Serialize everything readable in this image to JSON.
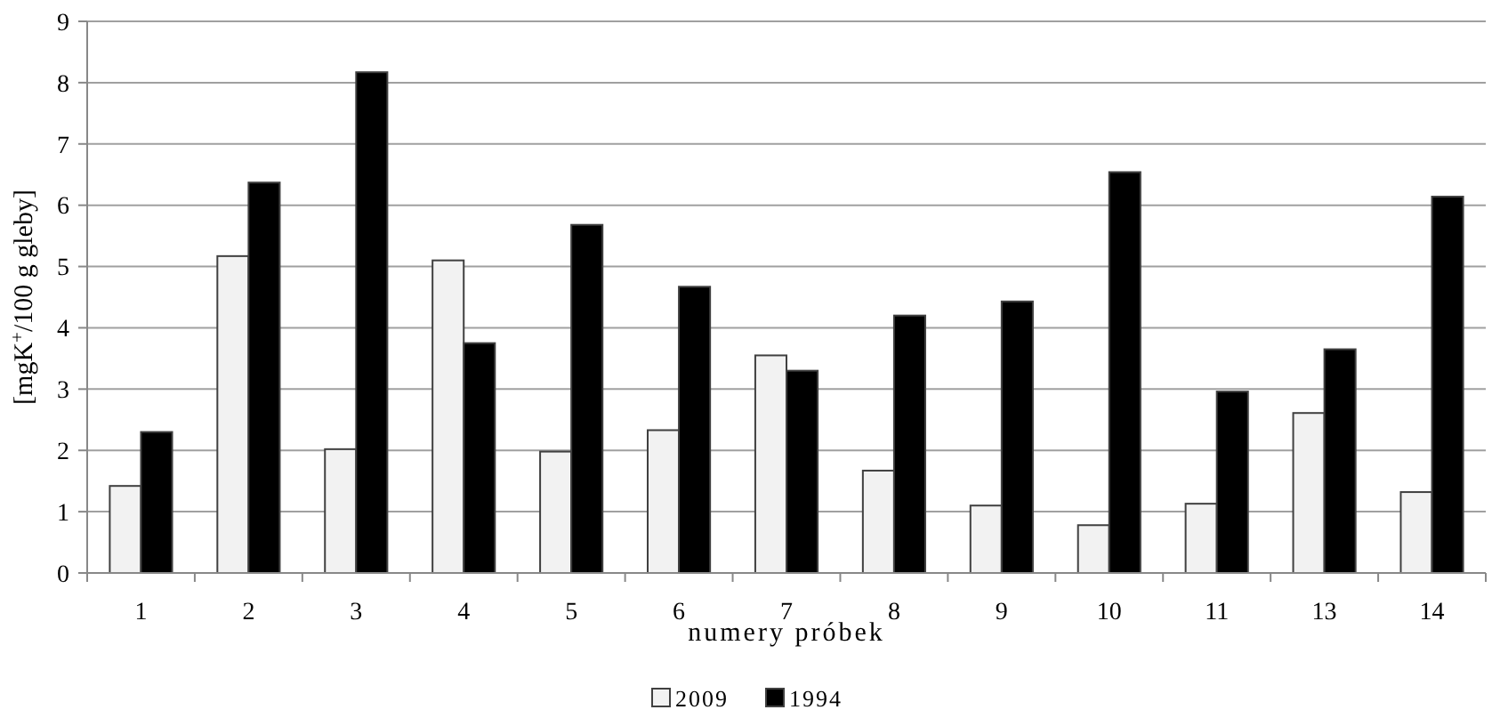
{
  "chart_data": {
    "type": "bar",
    "xlabel": "numery próbek",
    "ylabel": "[mgK$^{+}$/100 g gleby]",
    "categories": [
      "1",
      "2",
      "3",
      "4",
      "5",
      "6",
      "7",
      "8",
      "9",
      "10",
      "11",
      "13",
      "14"
    ],
    "series": [
      {
        "name": "2009",
        "color": "#f2f2f2",
        "values": [
          1.42,
          5.17,
          2.02,
          5.1,
          1.98,
          2.33,
          3.55,
          1.67,
          1.1,
          0.78,
          1.13,
          2.61,
          1.32
        ]
      },
      {
        "name": "1994",
        "color": "#000000",
        "values": [
          2.3,
          6.37,
          8.17,
          3.75,
          5.68,
          4.67,
          3.3,
          4.2,
          4.43,
          6.54,
          2.96,
          3.65,
          6.14
        ]
      }
    ],
    "ylim": [
      0,
      9
    ],
    "yticks": [
      0,
      1,
      2,
      3,
      4,
      5,
      6,
      7,
      8,
      9
    ],
    "grid": "y",
    "legend": "bottom"
  }
}
